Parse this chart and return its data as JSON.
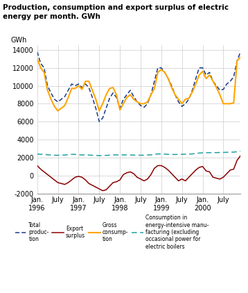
{
  "title": "Production, consumption and export surplus of electric\nenergy per month. GWh",
  "ylabel": "GWh",
  "ylim": [
    -2000,
    14500
  ],
  "yticks": [
    -2000,
    0,
    2000,
    4000,
    6000,
    8000,
    10000,
    12000,
    14000
  ],
  "background_color": "#ffffff",
  "title_color": "#000000",
  "teal_line_color": "#20a0a0",
  "production_color": "#1a3a8a",
  "export_color": "#8B0000",
  "consumption_color": "#FFA500",
  "xtick_positions": [
    0,
    6,
    12,
    18,
    24,
    30,
    36,
    42,
    48,
    54
  ],
  "xtick_labels": [
    "Jan.\n1996",
    "July",
    "Jan.\n1997",
    "July",
    "Jan.\n1998",
    "July",
    "Jan.\n1999",
    "July",
    "Jan.\n2000",
    "July"
  ],
  "total_production": [
    13800,
    12500,
    12000,
    10000,
    9200,
    8500,
    8200,
    8500,
    8800,
    9500,
    10200,
    10000,
    10200,
    9800,
    10200,
    9800,
    8700,
    7500,
    6000,
    6400,
    7500,
    8600,
    9200,
    8700,
    7500,
    8500,
    9000,
    9500,
    8800,
    8200,
    7800,
    7600,
    8000,
    9000,
    10500,
    12000,
    12000,
    11500,
    10800,
    10000,
    9000,
    8200,
    7700,
    8000,
    8500,
    9500,
    10800,
    12000,
    12000,
    11200,
    11500,
    10500,
    10000,
    9500,
    9600,
    10200,
    10500,
    11000,
    12800,
    13800
  ],
  "export_surplus": [
    1100,
    700,
    400,
    100,
    -200,
    -500,
    -800,
    -900,
    -1000,
    -800,
    -500,
    -200,
    -100,
    -200,
    -500,
    -900,
    -1100,
    -1300,
    -1500,
    -1700,
    -1600,
    -1200,
    -800,
    -700,
    -500,
    100,
    300,
    400,
    200,
    -200,
    -400,
    -600,
    -400,
    100,
    800,
    1100,
    1100,
    900,
    600,
    200,
    -200,
    -600,
    -400,
    -600,
    -200,
    200,
    600,
    900,
    1000,
    500,
    400,
    -200,
    -300,
    -400,
    -200,
    200,
    600,
    700,
    1700,
    2200
  ],
  "gross_consumption": [
    13000,
    12000,
    11500,
    9500,
    8500,
    7700,
    7200,
    7500,
    7800,
    8700,
    9700,
    9700,
    10000,
    9600,
    10500,
    10500,
    9500,
    8500,
    7200,
    8000,
    9000,
    9700,
    9800,
    9000,
    7300,
    8000,
    8700,
    9000,
    8500,
    8200,
    8000,
    8000,
    8200,
    9000,
    9700,
    11500,
    11800,
    11500,
    10800,
    9800,
    9000,
    8500,
    8000,
    8500,
    8600,
    9300,
    10200,
    11200,
    11600,
    10800,
    11200,
    10500,
    9800,
    9000,
    8000,
    8000,
    8000,
    8100,
    12800,
    13200
  ],
  "consumption_intensive": [
    2400,
    2350,
    2380,
    2300,
    2280,
    2250,
    2250,
    2260,
    2280,
    2300,
    2350,
    2350,
    2300,
    2280,
    2300,
    2270,
    2250,
    2230,
    2200,
    2220,
    2240,
    2270,
    2300,
    2290,
    2280,
    2290,
    2300,
    2280,
    2270,
    2260,
    2260,
    2260,
    2280,
    2300,
    2350,
    2400,
    2400,
    2380,
    2350,
    2340,
    2340,
    2350,
    2360,
    2370,
    2380,
    2400,
    2450,
    2500,
    2520,
    2530,
    2540,
    2540,
    2550,
    2560,
    2570,
    2580,
    2590,
    2600,
    2650,
    2700
  ]
}
